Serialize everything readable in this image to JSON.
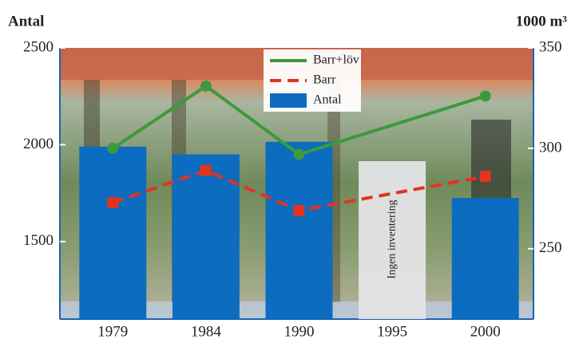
{
  "chart_data": {
    "type": "bar",
    "y_label": "Antal",
    "y2_label": "1000 m³",
    "categories": [
      "1979",
      "1984",
      "1990",
      "1995",
      "2000"
    ],
    "series": [
      {
        "name": "Barr+löv",
        "type": "line",
        "axis": "y2",
        "color": "#3c9a3c",
        "style": "solid",
        "x": [
          "1979",
          "1984",
          "1990",
          "2000"
        ],
        "values": [
          300,
          331,
          297,
          326
        ]
      },
      {
        "name": "Barr",
        "type": "line",
        "axis": "y2",
        "color": "#e2331f",
        "style": "dashed",
        "x": [
          "1979",
          "1984",
          "1990",
          "2000"
        ],
        "values": [
          273,
          289,
          269,
          286
        ]
      },
      {
        "name": "Antal",
        "type": "bar",
        "axis": "y",
        "color": "#0b6cc0",
        "values": [
          1990,
          1950,
          2015,
          null,
          1725
        ]
      }
    ],
    "annotation": {
      "category": "1995",
      "text": "Ingen inventering"
    },
    "ylim": [
      1100,
      2500
    ],
    "yticks": [
      1500,
      2000,
      2500
    ],
    "y2lim": [
      215,
      350
    ],
    "y2ticks": [
      250,
      300,
      350
    ],
    "legend": "top"
  }
}
